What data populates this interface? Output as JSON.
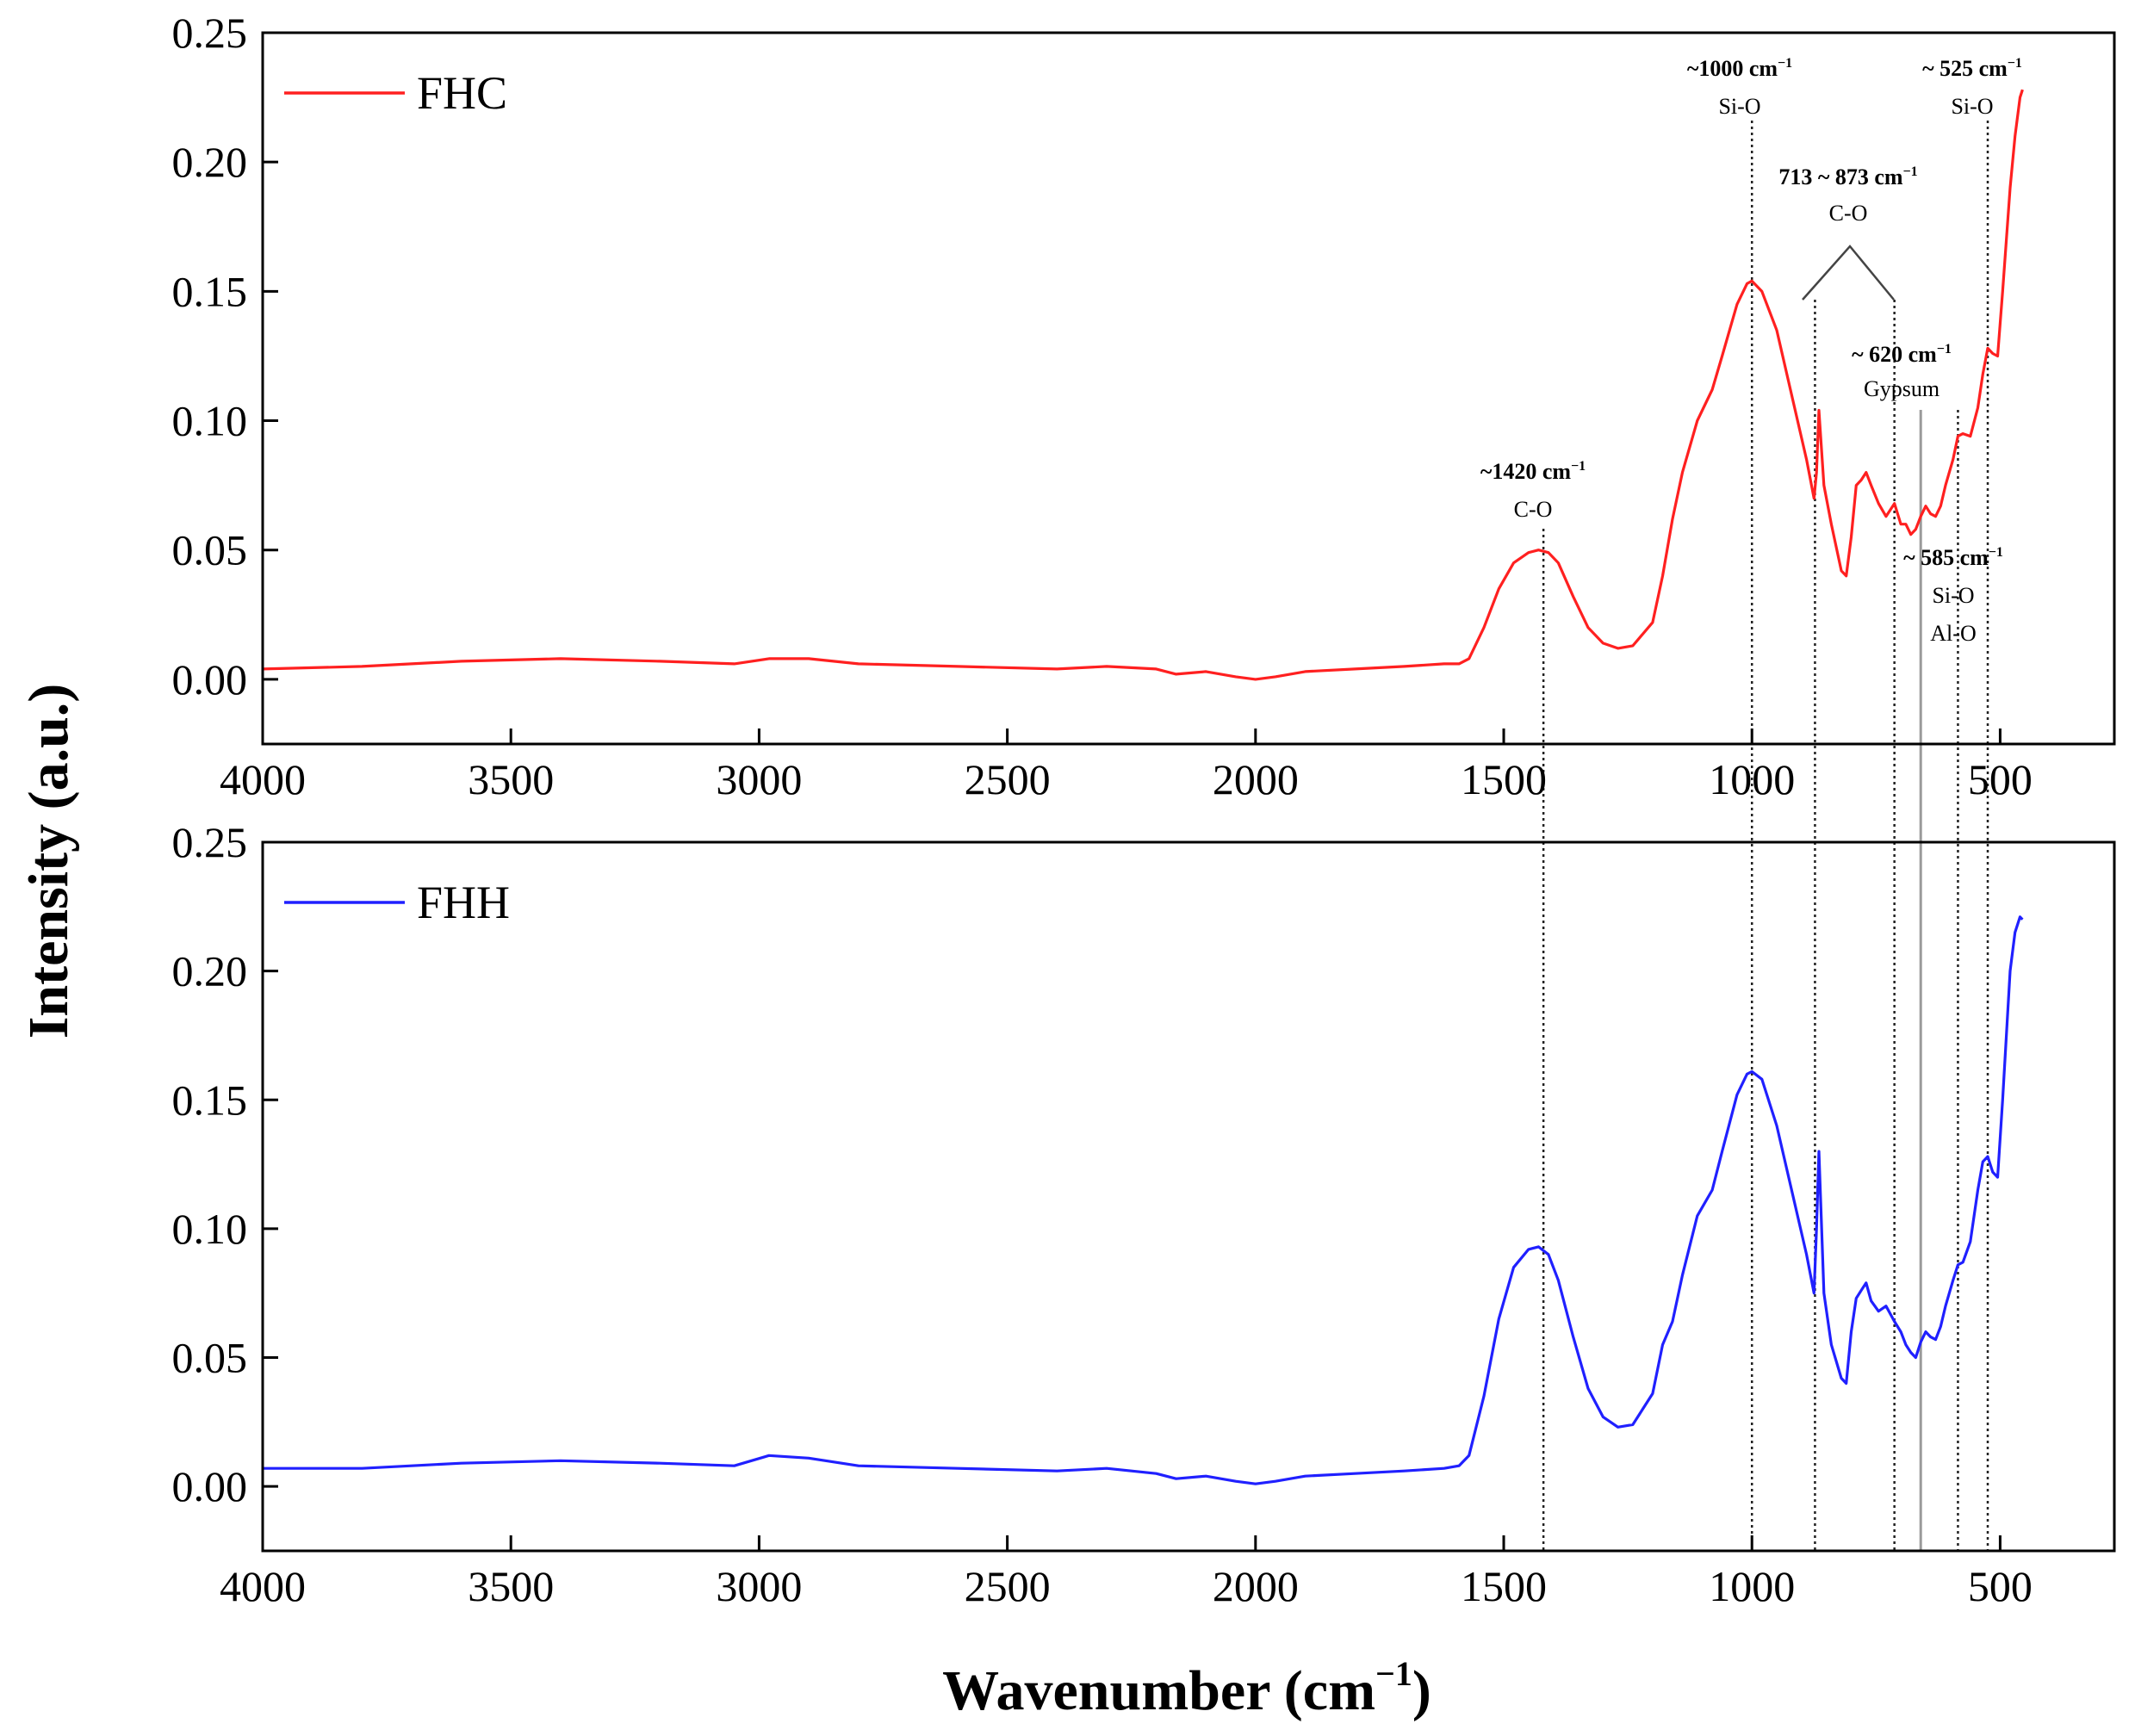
{
  "chart_data": {
    "type": "line",
    "ylabel": "Intensity (a.u.)",
    "xlabel_main": "Wavenumber (cm",
    "xlabel_sup": "−1",
    "xlabel_close": ")",
    "xlim": [
      4000,
      270
    ],
    "ylim": [
      -0.025,
      0.25
    ],
    "x_ticks": [
      4000,
      3500,
      3000,
      2500,
      2000,
      1500,
      1000,
      500
    ],
    "y_ticks": [
      0.0,
      0.05,
      0.1,
      0.15,
      0.2,
      0.25
    ],
    "y_tick_labels": [
      "0.00",
      "0.05",
      "0.10",
      "0.15",
      "0.20",
      "0.25"
    ],
    "x_tick_labels": [
      "4000",
      "3500",
      "3000",
      "2500",
      "2000",
      "1500",
      "1000",
      "500"
    ],
    "panels": [
      {
        "name": "FHC",
        "color": "#ff2020",
        "x": [
          4000,
          3800,
          3600,
          3400,
          3200,
          3050,
          2980,
          2900,
          2800,
          2600,
          2400,
          2300,
          2200,
          2160,
          2100,
          2040,
          2000,
          1960,
          1900,
          1800,
          1700,
          1620,
          1590,
          1570,
          1540,
          1510,
          1480,
          1450,
          1430,
          1410,
          1390,
          1360,
          1330,
          1300,
          1270,
          1240,
          1200,
          1180,
          1160,
          1140,
          1110,
          1080,
          1060,
          1030,
          1010,
          1000,
          980,
          950,
          920,
          890,
          875,
          870,
          865,
          855,
          840,
          820,
          810,
          800,
          790,
          780,
          770,
          760,
          745,
          730,
          713,
          700,
          690,
          680,
          670,
          660,
          650,
          640,
          630,
          620,
          610,
          595,
          585,
          575,
          560,
          545,
          535,
          525,
          515,
          505,
          495,
          480,
          470,
          460,
          455
        ],
        "y": [
          0.004,
          0.005,
          0.007,
          0.008,
          0.007,
          0.006,
          0.008,
          0.008,
          0.006,
          0.005,
          0.004,
          0.005,
          0.004,
          0.002,
          0.003,
          0.001,
          0.0,
          0.001,
          0.003,
          0.004,
          0.005,
          0.006,
          0.006,
          0.008,
          0.02,
          0.035,
          0.045,
          0.049,
          0.05,
          0.049,
          0.045,
          0.032,
          0.02,
          0.014,
          0.012,
          0.013,
          0.022,
          0.04,
          0.062,
          0.08,
          0.1,
          0.112,
          0.125,
          0.145,
          0.153,
          0.154,
          0.15,
          0.135,
          0.11,
          0.085,
          0.07,
          0.08,
          0.104,
          0.075,
          0.06,
          0.042,
          0.04,
          0.055,
          0.075,
          0.077,
          0.08,
          0.075,
          0.068,
          0.063,
          0.068,
          0.06,
          0.06,
          0.056,
          0.058,
          0.063,
          0.067,
          0.064,
          0.063,
          0.067,
          0.075,
          0.085,
          0.094,
          0.095,
          0.094,
          0.105,
          0.118,
          0.128,
          0.126,
          0.125,
          0.15,
          0.19,
          0.21,
          0.225,
          0.228
        ]
      },
      {
        "name": "FHH",
        "color": "#2020ff",
        "x": [
          4000,
          3800,
          3600,
          3400,
          3200,
          3050,
          2980,
          2900,
          2800,
          2600,
          2400,
          2300,
          2200,
          2160,
          2100,
          2040,
          2000,
          1960,
          1900,
          1800,
          1700,
          1620,
          1590,
          1570,
          1540,
          1510,
          1480,
          1450,
          1430,
          1410,
          1390,
          1360,
          1330,
          1300,
          1270,
          1240,
          1200,
          1180,
          1160,
          1140,
          1110,
          1080,
          1060,
          1030,
          1010,
          1000,
          980,
          950,
          920,
          890,
          875,
          870,
          865,
          855,
          840,
          820,
          810,
          800,
          790,
          780,
          770,
          760,
          745,
          730,
          713,
          700,
          690,
          680,
          670,
          660,
          650,
          640,
          630,
          620,
          610,
          595,
          585,
          575,
          560,
          545,
          535,
          525,
          515,
          505,
          495,
          480,
          470,
          460,
          455
        ],
        "y": [
          0.007,
          0.007,
          0.009,
          0.01,
          0.009,
          0.008,
          0.012,
          0.011,
          0.008,
          0.007,
          0.006,
          0.007,
          0.005,
          0.003,
          0.004,
          0.002,
          0.001,
          0.002,
          0.004,
          0.005,
          0.006,
          0.007,
          0.008,
          0.012,
          0.035,
          0.065,
          0.085,
          0.092,
          0.093,
          0.09,
          0.08,
          0.058,
          0.038,
          0.027,
          0.023,
          0.024,
          0.036,
          0.055,
          0.064,
          0.082,
          0.105,
          0.115,
          0.13,
          0.152,
          0.16,
          0.161,
          0.158,
          0.14,
          0.115,
          0.09,
          0.075,
          0.1,
          0.13,
          0.075,
          0.055,
          0.042,
          0.04,
          0.06,
          0.073,
          0.076,
          0.079,
          0.072,
          0.068,
          0.07,
          0.064,
          0.06,
          0.055,
          0.052,
          0.05,
          0.056,
          0.06,
          0.058,
          0.057,
          0.062,
          0.07,
          0.08,
          0.086,
          0.087,
          0.095,
          0.115,
          0.126,
          0.128,
          0.122,
          0.12,
          0.15,
          0.2,
          0.215,
          0.221,
          0.22
        ]
      }
    ],
    "reference_lines": [
      {
        "x": 1420,
        "style": "dotted"
      },
      {
        "x": 1000,
        "style": "dotted"
      },
      {
        "x": 873,
        "style": "dotted"
      },
      {
        "x": 713,
        "style": "dotted"
      },
      {
        "x": 660,
        "style": "solid"
      },
      {
        "x": 585,
        "style": "dotted"
      },
      {
        "x": 525,
        "style": "dotted"
      }
    ],
    "annotations": [
      {
        "line1": "~1420 cm",
        "sup": "−1",
        "line2": "C-O"
      },
      {
        "line1": "~1000 cm",
        "sup": "−1",
        "line2": "Si-O"
      },
      {
        "line1": "713 ~ 873 cm",
        "sup": "−1",
        "line2": "C-O"
      },
      {
        "line1": "~ 620 cm",
        "sup": "−1",
        "line2": "Gypsum"
      },
      {
        "line1": "~ 585 cm",
        "sup": "−1",
        "line2": "Si-O",
        "line3": "Al-O"
      },
      {
        "line1": "~ 525 cm",
        "sup": "−1",
        "line2": "Si-O"
      }
    ]
  }
}
